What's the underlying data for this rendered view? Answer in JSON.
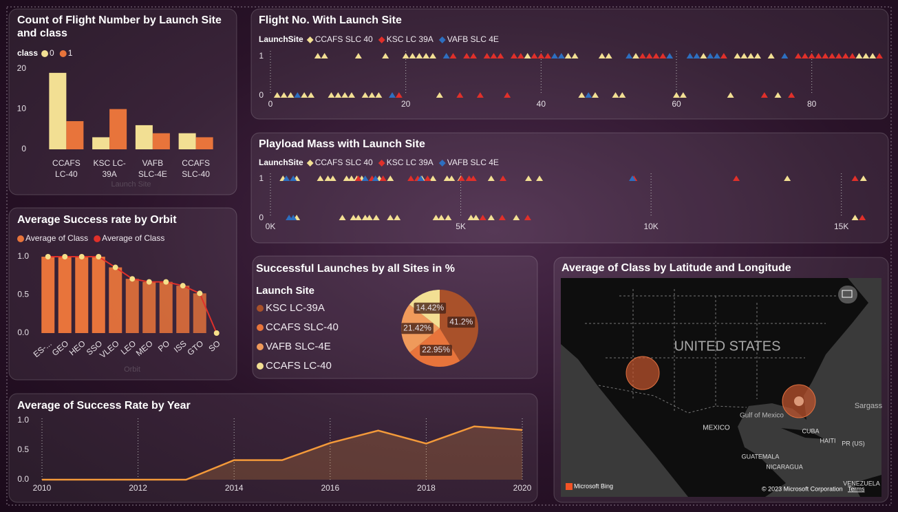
{
  "chart_data": [
    {
      "type": "bar",
      "title": "Count of Flight Number by Launch Site and class",
      "legend_title": "class",
      "x_label": "Launch Site",
      "categories": [
        "CCAFS LC-40",
        "KSC LC-39A",
        "VAFB SLC-4E",
        "CCAFS SLC-40"
      ],
      "series": [
        {
          "name": "0",
          "color": "#f2df93",
          "values": [
            19,
            3,
            6,
            4
          ]
        },
        {
          "name": "1",
          "color": "#e8743b",
          "values": [
            7,
            10,
            4,
            3
          ]
        }
      ],
      "ylim": [
        0,
        20
      ],
      "yticks": [
        0,
        10,
        20
      ]
    },
    {
      "type": "scatter",
      "title": "Flight No. With Launch Site",
      "legend_title": "LaunchSite",
      "marker": "triangle",
      "grid": true,
      "series": [
        {
          "name": "CCAFS SLC 40",
          "color": "#f2df93",
          "x": [
            1,
            2,
            3,
            5,
            6,
            7,
            8,
            9,
            10,
            11,
            12,
            13,
            14,
            15,
            16,
            17,
            20,
            21,
            22,
            23,
            24,
            25,
            38,
            44,
            45,
            46,
            48,
            49,
            50,
            51,
            52,
            54,
            60,
            61,
            64,
            68,
            69,
            70,
            71,
            72,
            74,
            75,
            87,
            88,
            89
          ],
          "values": [
            0,
            0,
            0,
            0,
            0,
            1,
            1,
            0,
            0,
            0,
            0,
            1,
            0,
            0,
            0,
            1,
            1,
            1,
            1,
            1,
            1,
            0,
            1,
            1,
            1,
            0,
            0,
            1,
            1,
            0,
            0,
            1,
            0,
            0,
            1,
            0,
            1,
            1,
            1,
            1,
            1,
            0,
            1,
            1,
            1
          ]
        },
        {
          "name": "KSC LC 39A",
          "color": "#e0302a",
          "x": [
            19,
            27,
            28,
            29,
            30,
            31,
            32,
            33,
            34,
            35,
            36,
            37,
            39,
            40,
            41,
            55,
            56,
            57,
            58,
            67,
            73,
            77,
            78,
            79,
            80,
            81,
            82,
            83,
            84,
            85,
            86,
            90
          ],
          "values": [
            0,
            1,
            0,
            1,
            1,
            0,
            1,
            1,
            1,
            0,
            1,
            1,
            1,
            1,
            1,
            1,
            1,
            1,
            1,
            1,
            0,
            0,
            1,
            1,
            1,
            1,
            1,
            1,
            1,
            1,
            1,
            1
          ]
        },
        {
          "name": "VAFB SLC 4E",
          "color": "#2d6fc0",
          "x": [
            4,
            18,
            26,
            42,
            43,
            47,
            53,
            59,
            62,
            63,
            65,
            66,
            76
          ],
          "values": [
            0,
            0,
            1,
            1,
            1,
            0,
            1,
            1,
            1,
            1,
            1,
            1,
            1
          ]
        }
      ],
      "xlim": [
        0,
        90
      ],
      "xticks": [
        0,
        20,
        40,
        60,
        80
      ],
      "ylim": [
        0,
        1
      ],
      "yticks": [
        0,
        1
      ]
    },
    {
      "type": "scatter",
      "title": "Playload Mass with Launch Site",
      "legend_title": "LaunchSite",
      "marker": "triangle",
      "grid": true,
      "series": [
        {
          "name": "CCAFS SLC 40",
          "color": "#f2df93",
          "x": [
            330,
            690,
            690,
            1310,
            1510,
            1640,
            1890,
            2000,
            2130,
            2180,
            2270,
            2310,
            2400,
            2490,
            2600,
            2780,
            2860,
            3150,
            3150,
            3330,
            3980,
            4270,
            4350,
            4490,
            4640,
            4670,
            4760,
            5000,
            5270,
            5400,
            5800,
            5800,
            6460,
            6780,
            7070,
            13580,
            15360,
            15580
          ],
          "values": [
            1,
            1,
            0,
            1,
            1,
            1,
            0,
            1,
            1,
            0,
            1,
            0,
            1,
            0,
            0,
            0,
            1,
            1,
            0,
            0,
            1,
            1,
            0,
            0,
            1,
            0,
            1,
            1,
            0,
            0,
            1,
            0,
            0,
            1,
            1,
            1,
            0,
            1
          ]
        },
        {
          "name": "KSC LC 39A",
          "color": "#e0302a",
          "x": [
            2310,
            2670,
            2960,
            3690,
            3870,
            4130,
            5020,
            5220,
            5330,
            5580,
            6090,
            6110,
            6760,
            9550,
            12240,
            15360,
            15550
          ],
          "values": [
            1,
            1,
            1,
            1,
            1,
            1,
            1,
            1,
            1,
            0,
            0,
            1,
            0,
            1,
            1,
            1,
            0
          ]
        },
        {
          "name": "VAFB SLC 4E",
          "color": "#2d6fc0",
          "x": [
            420,
            490,
            600,
            600,
            2490,
            2760,
            3950,
            9510
          ],
          "values": [
            1,
            0,
            1,
            0,
            1,
            1,
            1,
            1
          ]
        }
      ],
      "xlim": [
        0,
        16000
      ],
      "xticks": [
        {
          "value": 0,
          "label": "0K"
        },
        {
          "value": 5000,
          "label": "5K"
        },
        {
          "value": 10000,
          "label": "10K"
        },
        {
          "value": 15000,
          "label": "15K"
        }
      ],
      "ylim": [
        0,
        1
      ],
      "yticks": [
        0,
        1
      ]
    },
    {
      "type": "combo",
      "title": "Average Success rate by Orbit",
      "x_label": "Orbit",
      "categories": [
        "ES-...",
        "GEO",
        "HEO",
        "SSO",
        "VLEO",
        "LEO",
        "MEO",
        "PO",
        "ISS",
        "GTO",
        "SO"
      ],
      "series": [
        {
          "name": "Average of Class",
          "kind": "bar",
          "color": "#e8743b",
          "values": [
            1.0,
            1.0,
            1.0,
            1.0,
            0.86,
            0.71,
            0.67,
            0.67,
            0.62,
            0.52,
            0
          ]
        },
        {
          "name": "Average of Class",
          "kind": "line",
          "color": "#e0302a",
          "marker_color": "#f5e08a",
          "values": [
            1.0,
            1.0,
            1.0,
            1.0,
            0.86,
            0.71,
            0.67,
            0.67,
            0.62,
            0.52,
            0
          ]
        }
      ],
      "ylim": [
        0,
        1
      ],
      "yticks": [
        {
          "value": 0,
          "label": "0.0"
        },
        {
          "value": 0.5,
          "label": "0.5"
        },
        {
          "value": 1,
          "label": "1.0"
        }
      ]
    },
    {
      "type": "pie",
      "title": "Successful Launches by all Sites in %",
      "legend_title": "Launch Site",
      "categories": [
        "KSC LC-39A",
        "CCAFS SLC-40",
        "VAFB SLC-4E",
        "CCAFS LC-40"
      ],
      "values": [
        41.2,
        22.95,
        21.42,
        14.42
      ],
      "value_labels": [
        "41.2%",
        "22.95%",
        "21.42%",
        "14.42%"
      ],
      "colors": [
        "#a9512a",
        "#e8743b",
        "#ef9a5b",
        "#f2df93"
      ]
    },
    {
      "type": "area",
      "title": "Average of Success Rate by Year",
      "color": "#f49a3a",
      "grid": true,
      "x": [
        2010,
        2011,
        2012,
        2013,
        2014,
        2015,
        2016,
        2017,
        2018,
        2019,
        2020
      ],
      "values": [
        0,
        0,
        0,
        0,
        0.33,
        0.33,
        0.62,
        0.83,
        0.61,
        0.9,
        0.84
      ],
      "xlim": [
        2010,
        2020
      ],
      "xticks": [
        2010,
        2012,
        2014,
        2016,
        2018,
        2020
      ],
      "ylim": [
        0,
        1
      ],
      "yticks": [
        {
          "value": 0,
          "label": "0.0"
        },
        {
          "value": 0.5,
          "label": "0.5"
        },
        {
          "value": 1,
          "label": "1.0"
        }
      ]
    },
    {
      "type": "map",
      "title": "Average of Class by Latitude and Longitude",
      "labels": [
        "UNITED STATES",
        "MEXICO",
        "Gulf of Mexico",
        "CUBA",
        "HAITI",
        "PR (US)",
        "GUATEMALA",
        "NICARAGUA",
        "VENEZUELA",
        "Sargass"
      ],
      "provider": "Microsoft Bing",
      "copyright": "© 2023 Microsoft Corporation",
      "terms": "Terms",
      "points": [
        {
          "lat": 34.6,
          "lon": -120.6
        },
        {
          "lat": 28.5,
          "lon": -80.6
        }
      ],
      "color": "#c4562e"
    }
  ]
}
